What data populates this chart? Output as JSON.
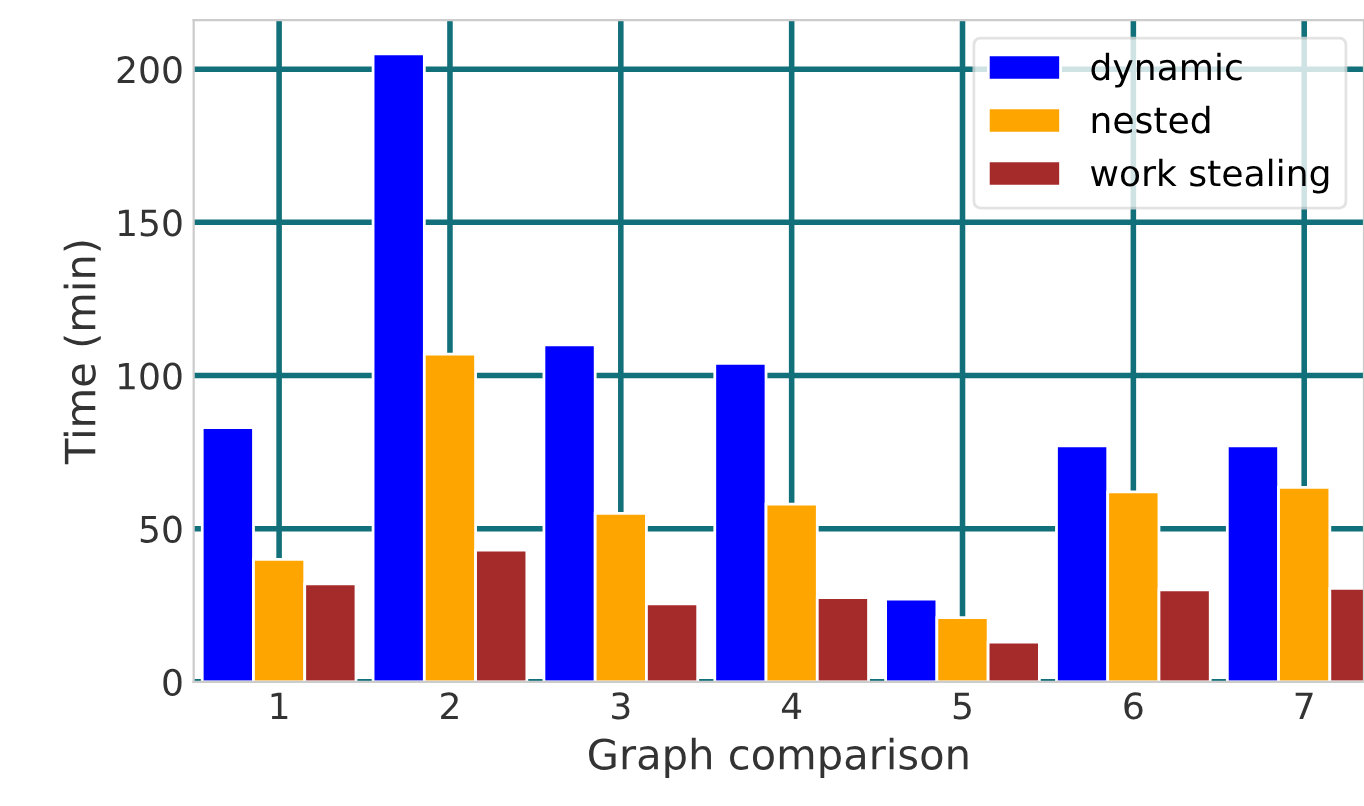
{
  "chart_data": {
    "type": "bar",
    "xlabel": "Graph comparison",
    "ylabel": "Time (min)",
    "x": [
      1,
      2,
      3,
      4,
      5,
      6,
      7
    ],
    "xlim": [
      0.5,
      7.35
    ],
    "xticks": [
      1,
      2,
      3,
      4,
      5,
      6,
      7
    ],
    "ylim": [
      0,
      216
    ],
    "yticks": [
      0,
      50,
      100,
      150,
      200
    ],
    "series": [
      {
        "name": "dynamic",
        "color": "#0000ff",
        "values": [
          83,
          205,
          110,
          104,
          27,
          77,
          77
        ]
      },
      {
        "name": "nested",
        "color": "#ffa500",
        "values": [
          40,
          107,
          55,
          58,
          21,
          62,
          63.5
        ]
      },
      {
        "name": "work stealing",
        "color": "#a52a2a",
        "values": [
          32,
          43,
          25.5,
          27.5,
          13,
          30,
          30.5
        ]
      }
    ],
    "grid": true,
    "legend": "top right"
  }
}
